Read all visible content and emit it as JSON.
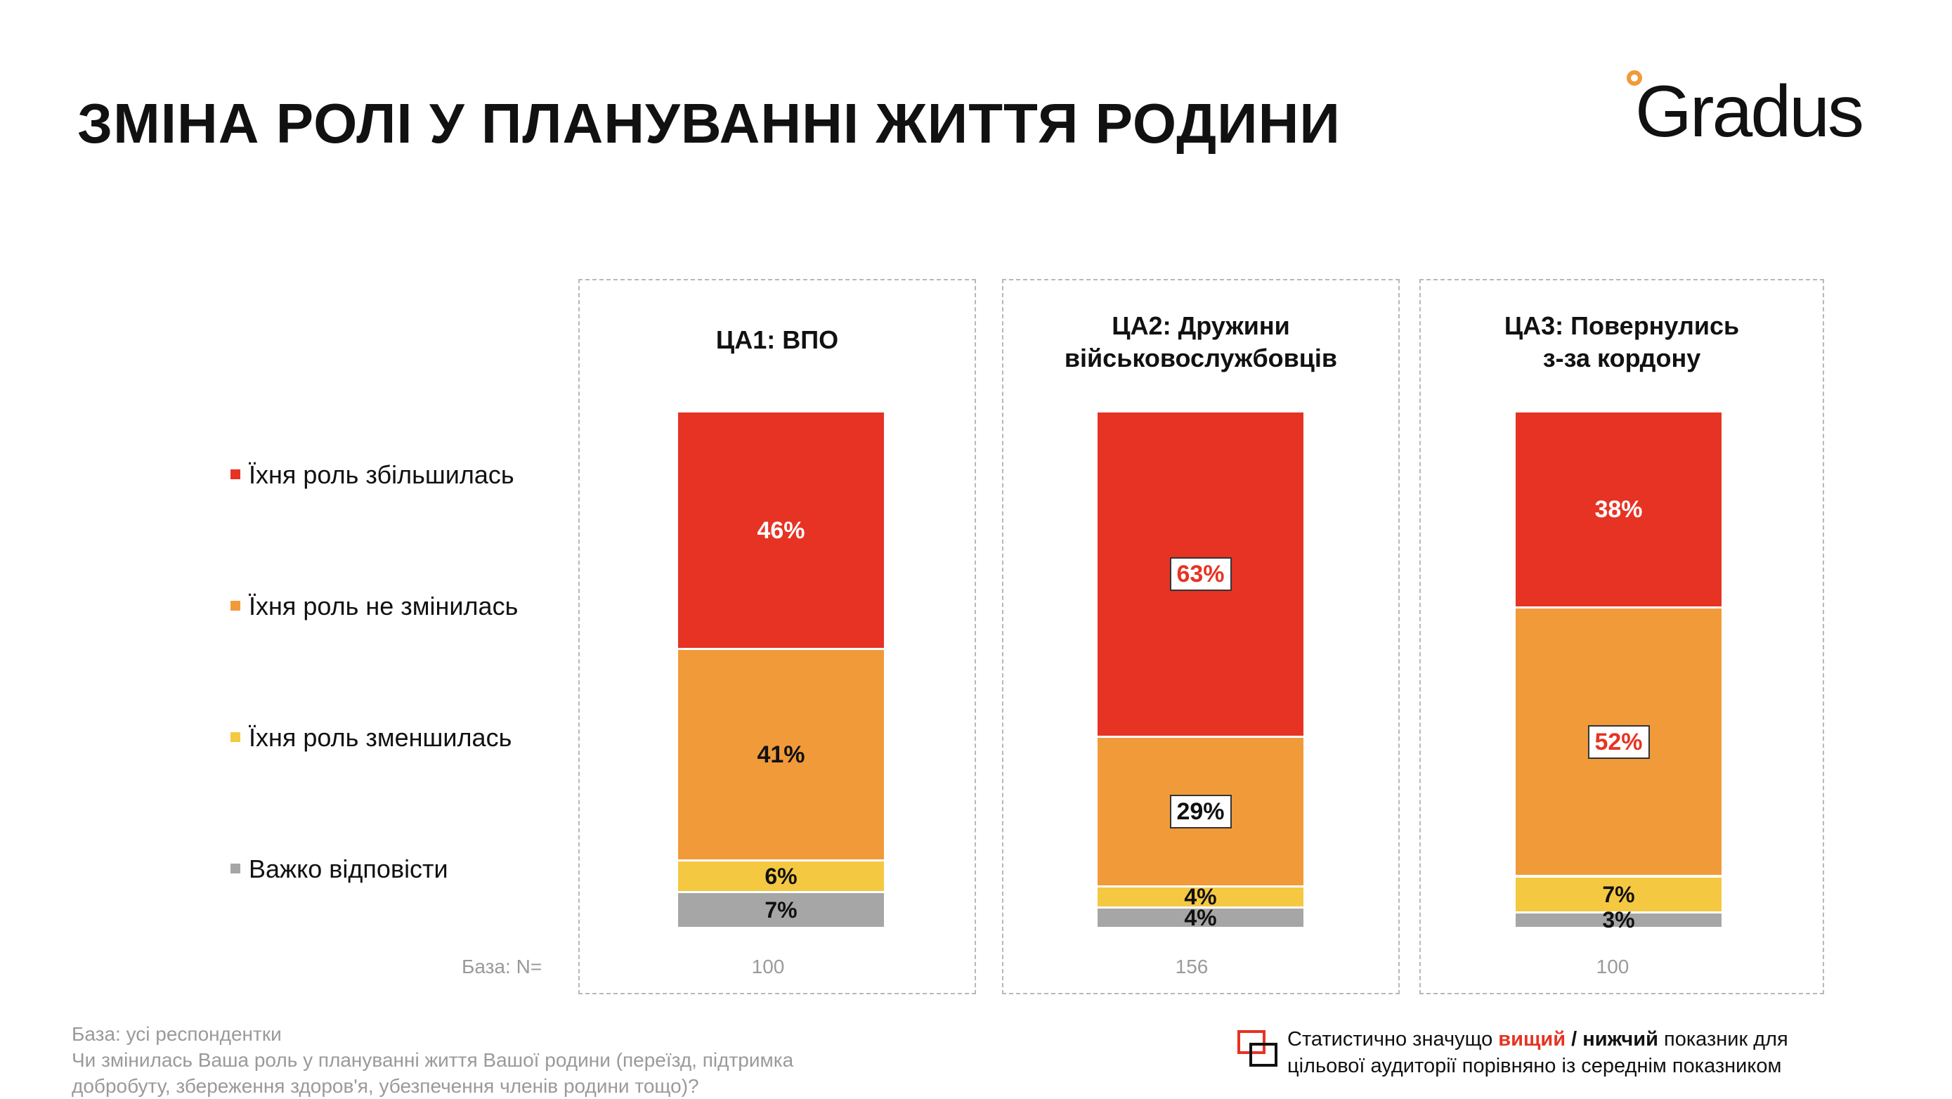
{
  "page": {
    "title": "ЗМІНА РОЛІ У ПЛАНУВАННІ ЖИТТЯ РОДИНИ",
    "logo_text": "Gradus"
  },
  "colors": {
    "increased": "#e63323",
    "unchanged": "#f19a3a",
    "decreased": "#f5c842",
    "hard_to_say": "#a6a6a6"
  },
  "chart_data": {
    "type": "bar",
    "stacked": "100%",
    "categories": [
      "ЦА1: ВПО",
      "ЦА2: Дружини\nвійськовослужбовців",
      "ЦА3: Повернулись\nз-за кордону"
    ],
    "series": [
      {
        "name": "Їхня роль збільшилась",
        "values": [
          46,
          63,
          38
        ],
        "labels": [
          "46%",
          "63%",
          "38%"
        ],
        "significance": [
          "",
          "higher",
          ""
        ]
      },
      {
        "name": "Їхня роль не змінилась",
        "values": [
          41,
          29,
          52
        ],
        "labels": [
          "41%",
          "29%",
          "52%"
        ],
        "significance": [
          "",
          "lower",
          "higher"
        ]
      },
      {
        "name": "Їхня роль зменшилась",
        "values": [
          6,
          4,
          7
        ],
        "labels": [
          "6%",
          "4%",
          "7%"
        ],
        "significance": [
          "",
          "",
          ""
        ]
      },
      {
        "name": "Важко відповісти",
        "values": [
          7,
          4,
          3
        ],
        "labels": [
          "7%",
          "4%",
          "3%"
        ],
        "significance": [
          "",
          "",
          ""
        ]
      }
    ],
    "base_label": "База: N=",
    "base_n": [
      "100",
      "156",
      "100"
    ]
  },
  "footnote": {
    "line1": "База: усі респондентки",
    "line2": "Чи змінилась Ваша роль у плануванні життя Вашої родини (переїзд, підтримка",
    "line3": "добробуту, збереження здоров'я, убезпечення членів родини тощо)?"
  },
  "significance_note": {
    "prefix": "Статистично значущо ",
    "higher": "вищий",
    "sep": " / ",
    "lower": "нижчий",
    "suffix": " показник для",
    "line2": "цільової аудиторії порівняно із середнім показником"
  }
}
